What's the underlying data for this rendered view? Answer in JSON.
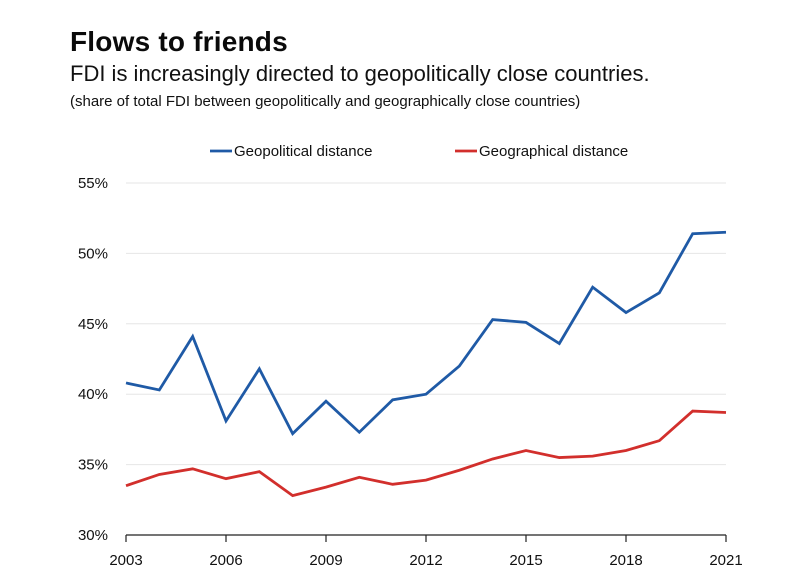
{
  "header": {
    "title": "Flows to friends",
    "subtitle": "FDI is increasingly directed to geopolitically close countries.",
    "note": "(share of total FDI between geopolitically and geographically close countries)"
  },
  "colors": {
    "geopolitical": "#1f5aa6",
    "geographical": "#d22f2c",
    "grid": "#e6e6e6",
    "axis": "#222222"
  },
  "chart_data": {
    "type": "line",
    "title": "Flows to friends",
    "x": [
      2003,
      2004,
      2005,
      2006,
      2007,
      2008,
      2009,
      2010,
      2011,
      2012,
      2013,
      2014,
      2015,
      2016,
      2017,
      2018,
      2019,
      2020,
      2021
    ],
    "series": [
      {
        "name": "Geopolitical distance",
        "color": "#1f5aa6",
        "values": [
          40.8,
          40.3,
          44.1,
          38.1,
          41.8,
          37.2,
          39.5,
          37.3,
          39.6,
          40.0,
          42.0,
          45.3,
          45.1,
          43.6,
          47.6,
          45.8,
          47.2,
          51.4,
          51.5
        ]
      },
      {
        "name": "Geographical distance",
        "color": "#d22f2c",
        "values": [
          33.5,
          34.3,
          34.7,
          34.0,
          34.5,
          32.8,
          33.4,
          34.1,
          33.6,
          33.9,
          34.6,
          35.4,
          36.0,
          35.5,
          35.6,
          36.0,
          36.7,
          38.8,
          38.7
        ]
      }
    ],
    "xlim": [
      2003,
      2021
    ],
    "ylim": [
      30,
      55
    ],
    "yticks": [
      30,
      35,
      40,
      45,
      50,
      55
    ],
    "ytick_labels": [
      "30%",
      "35%",
      "40%",
      "45%",
      "50%",
      "55%"
    ],
    "xticks": [
      2003,
      2006,
      2009,
      2012,
      2015,
      2018,
      2021
    ],
    "xtick_labels": [
      "2003",
      "2006",
      "2009",
      "2012",
      "2015",
      "2018",
      "2021"
    ],
    "xlabel": "",
    "ylabel": "",
    "grid": true,
    "legend_position": "top-center"
  }
}
